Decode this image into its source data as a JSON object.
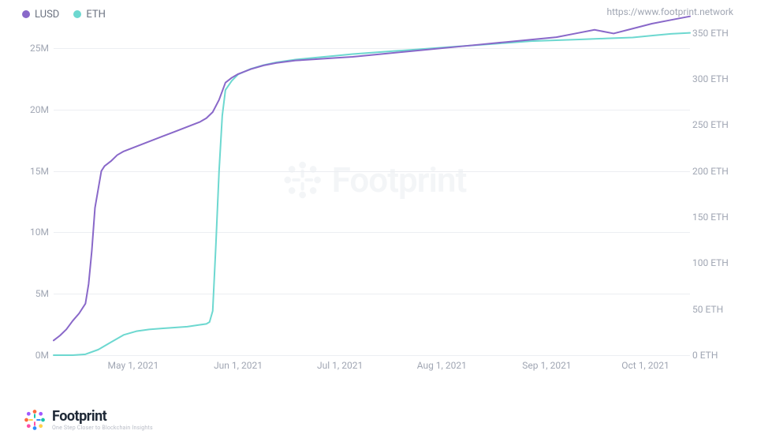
{
  "legend": {
    "series1": {
      "label": "LUSD",
      "color": "#8968c9"
    },
    "series2": {
      "label": "ETH",
      "color": "#6dd8d0"
    }
  },
  "source_url": "https://www.footprint.network",
  "chart": {
    "type": "line",
    "background_color": "#ffffff",
    "grid_color": "#eceef2",
    "axis_label_color": "#a0a6b3",
    "axis_fontsize": 12,
    "line_width": 2,
    "y_left": {
      "min": 0,
      "max": 27,
      "tick_step": 5,
      "tick_labels": [
        "0M",
        "5M",
        "10M",
        "15M",
        "20M",
        "25M"
      ],
      "tick_values": [
        0,
        5,
        10,
        15,
        20,
        25
      ]
    },
    "y_right": {
      "min": 0,
      "max": 360,
      "tick_step": 50,
      "suffix": "ETH",
      "tick_labels": [
        "0 ETH",
        "50 ETH",
        "100 ETH",
        "150 ETH",
        "200 ETH",
        "250 ETH",
        "300 ETH",
        "350 ETH"
      ],
      "tick_values": [
        0,
        50,
        100,
        150,
        200,
        250,
        300,
        350
      ]
    },
    "x": {
      "min": 0,
      "max": 200,
      "tick_positions": [
        25,
        58,
        90,
        122,
        155,
        186
      ],
      "tick_labels": [
        "May 1, 2021",
        "Jun 1, 2021",
        "Jul 1, 2021",
        "Aug 1, 2021",
        "Sep 1, 2021",
        "Oct 1, 2021"
      ]
    },
    "series_lusd": {
      "color": "#8968c9",
      "points": [
        [
          0,
          1.2
        ],
        [
          2,
          1.6
        ],
        [
          4,
          2.1
        ],
        [
          6,
          2.8
        ],
        [
          8,
          3.4
        ],
        [
          10,
          4.2
        ],
        [
          11,
          5.8
        ],
        [
          12,
          8.5
        ],
        [
          13,
          12.0
        ],
        [
          14,
          13.5
        ],
        [
          15,
          15.0
        ],
        [
          16,
          15.4
        ],
        [
          18,
          15.8
        ],
        [
          20,
          16.3
        ],
        [
          22,
          16.6
        ],
        [
          26,
          17.0
        ],
        [
          30,
          17.4
        ],
        [
          34,
          17.8
        ],
        [
          38,
          18.2
        ],
        [
          42,
          18.6
        ],
        [
          46,
          19.0
        ],
        [
          48,
          19.3
        ],
        [
          50,
          19.8
        ],
        [
          52,
          20.8
        ],
        [
          53,
          21.5
        ],
        [
          54,
          22.2
        ],
        [
          56,
          22.6
        ],
        [
          58,
          22.9
        ],
        [
          62,
          23.3
        ],
        [
          66,
          23.6
        ],
        [
          70,
          23.8
        ],
        [
          76,
          24.0
        ],
        [
          82,
          24.1
        ],
        [
          88,
          24.2
        ],
        [
          94,
          24.3
        ],
        [
          102,
          24.5
        ],
        [
          110,
          24.7
        ],
        [
          118,
          24.9
        ],
        [
          126,
          25.1
        ],
        [
          134,
          25.3
        ],
        [
          142,
          25.5
        ],
        [
          150,
          25.7
        ],
        [
          158,
          25.9
        ],
        [
          164,
          26.2
        ],
        [
          170,
          26.5
        ],
        [
          176,
          26.2
        ],
        [
          182,
          26.6
        ],
        [
          188,
          27.0
        ],
        [
          194,
          27.3
        ],
        [
          200,
          27.6
        ]
      ]
    },
    "series_eth": {
      "color": "#6dd8d0",
      "points": [
        [
          0,
          0
        ],
        [
          6,
          0
        ],
        [
          10,
          1
        ],
        [
          14,
          6
        ],
        [
          18,
          14
        ],
        [
          22,
          22
        ],
        [
          26,
          26
        ],
        [
          30,
          28
        ],
        [
          34,
          29
        ],
        [
          38,
          30
        ],
        [
          42,
          31
        ],
        [
          46,
          33
        ],
        [
          48,
          34
        ],
        [
          49,
          36
        ],
        [
          50,
          48
        ],
        [
          51,
          120
        ],
        [
          52,
          200
        ],
        [
          53,
          260
        ],
        [
          54,
          288
        ],
        [
          56,
          298
        ],
        [
          58,
          305
        ],
        [
          62,
          311
        ],
        [
          66,
          315
        ],
        [
          70,
          318
        ],
        [
          76,
          321
        ],
        [
          82,
          323
        ],
        [
          88,
          325
        ],
        [
          94,
          327
        ],
        [
          102,
          329
        ],
        [
          110,
          331
        ],
        [
          118,
          333
        ],
        [
          126,
          335
        ],
        [
          134,
          337
        ],
        [
          142,
          339
        ],
        [
          150,
          341
        ],
        [
          158,
          342
        ],
        [
          166,
          343
        ],
        [
          174,
          344
        ],
        [
          182,
          345
        ],
        [
          188,
          347
        ],
        [
          194,
          349
        ],
        [
          200,
          350
        ]
      ]
    }
  },
  "watermark": {
    "text": "Footprint",
    "color": "#94a3b8"
  },
  "footer": {
    "brand": "Footprint",
    "tagline": "One Step Closer to Blockchain Insights",
    "logo_colors": [
      "#ff6a3d",
      "#a259ff",
      "#19c3ac",
      "#ffd24c",
      "#2f8bff",
      "#ff4da6"
    ]
  }
}
